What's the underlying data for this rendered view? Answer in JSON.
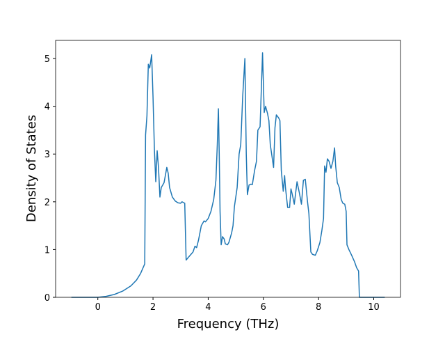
{
  "chart_data": {
    "type": "line",
    "x_label": "Frequency (THz)",
    "y_label": "Density of States",
    "xlim": [
      -1.53,
      10.97
    ],
    "ylim": [
      0,
      5.38
    ],
    "xticks": [
      0,
      2,
      4,
      6,
      8,
      10
    ],
    "yticks": [
      0,
      1,
      2,
      3,
      4,
      5
    ],
    "grid": false,
    "series": [
      {
        "color": "#1f77b4",
        "x": [
          -0.96,
          0,
          0.3,
          0.6,
          0.9,
          1.2,
          1.4,
          1.55,
          1.7,
          1.73,
          1.78,
          1.83,
          1.88,
          1.95,
          2.0,
          2.05,
          2.1,
          2.15,
          2.2,
          2.25,
          2.3,
          2.4,
          2.5,
          2.55,
          2.6,
          2.7,
          2.8,
          2.9,
          3.0,
          3.05,
          3.15,
          3.2,
          3.3,
          3.45,
          3.52,
          3.58,
          3.65,
          3.75,
          3.85,
          3.9,
          4.0,
          4.1,
          4.2,
          4.28,
          4.33,
          4.37,
          4.4,
          4.43,
          4.47,
          4.52,
          4.58,
          4.62,
          4.7,
          4.75,
          4.85,
          4.9,
          4.95,
          5.05,
          5.12,
          5.18,
          5.25,
          5.33,
          5.38,
          5.42,
          5.48,
          5.55,
          5.6,
          5.68,
          5.75,
          5.8,
          5.88,
          5.97,
          6.03,
          6.08,
          6.15,
          6.2,
          6.25,
          6.3,
          6.37,
          6.42,
          6.47,
          6.55,
          6.6,
          6.65,
          6.72,
          6.77,
          6.8,
          6.88,
          6.95,
          7.0,
          7.05,
          7.12,
          7.22,
          7.3,
          7.38,
          7.45,
          7.52,
          7.6,
          7.65,
          7.72,
          7.78,
          7.88,
          7.95,
          8.05,
          8.12,
          8.18,
          8.22,
          8.27,
          8.32,
          8.38,
          8.45,
          8.52,
          8.58,
          8.62,
          8.68,
          8.75,
          8.82,
          8.88,
          8.95,
          9.0,
          9.03,
          9.1,
          9.2,
          9.3,
          9.38,
          9.45,
          9.48,
          10.4
        ],
        "values": [
          0,
          0,
          0.02,
          0.06,
          0.13,
          0.24,
          0.36,
          0.5,
          0.7,
          3.4,
          3.8,
          4.88,
          4.8,
          5.08,
          4.2,
          3.1,
          2.42,
          3.07,
          2.7,
          2.1,
          2.3,
          2.4,
          2.72,
          2.6,
          2.3,
          2.1,
          2.02,
          1.98,
          1.97,
          2.0,
          1.97,
          0.78,
          0.85,
          0.95,
          1.07,
          1.04,
          1.2,
          1.5,
          1.6,
          1.58,
          1.65,
          1.8,
          2.05,
          2.45,
          3.2,
          3.95,
          3.0,
          1.8,
          1.1,
          1.27,
          1.22,
          1.12,
          1.1,
          1.15,
          1.35,
          1.5,
          1.9,
          2.3,
          3.0,
          3.2,
          4.2,
          5.0,
          3.0,
          2.15,
          2.35,
          2.37,
          2.36,
          2.65,
          2.85,
          3.5,
          3.57,
          5.12,
          3.87,
          4.0,
          3.85,
          3.7,
          3.2,
          3.0,
          2.72,
          3.55,
          3.82,
          3.76,
          3.7,
          2.65,
          2.22,
          2.55,
          2.3,
          1.88,
          1.88,
          2.27,
          2.15,
          1.95,
          2.42,
          2.2,
          1.95,
          2.45,
          2.47,
          2.0,
          1.75,
          0.95,
          0.9,
          0.88,
          0.97,
          1.15,
          1.4,
          1.65,
          2.75,
          2.62,
          2.9,
          2.85,
          2.7,
          2.85,
          3.13,
          2.75,
          2.4,
          2.3,
          2.05,
          1.97,
          1.95,
          1.8,
          1.1,
          1.0,
          0.88,
          0.75,
          0.62,
          0.55,
          0,
          0
        ]
      }
    ]
  }
}
